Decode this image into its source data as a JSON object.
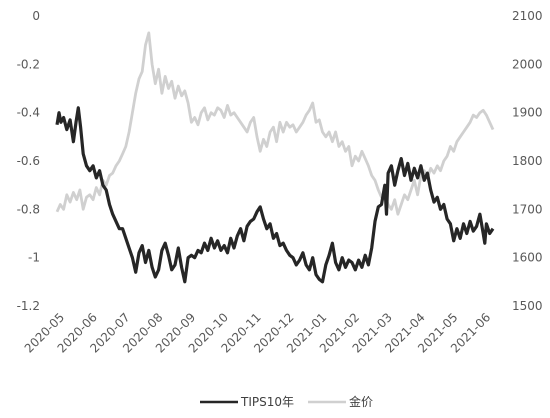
{
  "chart_data": {
    "type": "line",
    "x_categories": [
      "2020-05",
      "2020-06",
      "2020-07",
      "2020-08",
      "2020-09",
      "2020-10",
      "2020-11",
      "2020-12",
      "2021-01",
      "2021-02",
      "2021-03",
      "2021-04",
      "2021-05",
      "2021-06"
    ],
    "left_axis": {
      "min": -1.2,
      "max": 0,
      "ticks": [
        "0",
        "-0.2",
        "-0.4",
        "-0.6",
        "-0.8",
        "-1",
        "-1.2"
      ],
      "tick_values": [
        0,
        -0.2,
        -0.4,
        -0.6,
        -0.8,
        -1,
        -1.2
      ]
    },
    "right_axis": {
      "min": 1500,
      "max": 2100,
      "ticks": [
        "2100",
        "2000",
        "1900",
        "1800",
        "1700",
        "1600",
        "1500"
      ],
      "tick_values": [
        2100,
        2000,
        1900,
        1800,
        1700,
        1600,
        1500
      ]
    },
    "grid": false,
    "legend_position": "bottom",
    "series": [
      {
        "name": "TIPS10年",
        "axis": "left",
        "color": "#262626",
        "points": [
          [
            0.0,
            -0.45
          ],
          [
            0.06,
            -0.4
          ],
          [
            0.12,
            -0.44
          ],
          [
            0.2,
            -0.42
          ],
          [
            0.3,
            -0.47
          ],
          [
            0.4,
            -0.43
          ],
          [
            0.5,
            -0.52
          ],
          [
            0.58,
            -0.44
          ],
          [
            0.65,
            -0.38
          ],
          [
            0.72,
            -0.46
          ],
          [
            0.8,
            -0.57
          ],
          [
            0.9,
            -0.62
          ],
          [
            1.0,
            -0.64
          ],
          [
            1.1,
            -0.62
          ],
          [
            1.2,
            -0.67
          ],
          [
            1.3,
            -0.64
          ],
          [
            1.4,
            -0.7
          ],
          [
            1.5,
            -0.72
          ],
          [
            1.6,
            -0.78
          ],
          [
            1.7,
            -0.82
          ],
          [
            1.8,
            -0.85
          ],
          [
            1.9,
            -0.88
          ],
          [
            2.0,
            -0.88
          ],
          [
            2.1,
            -0.92
          ],
          [
            2.2,
            -0.96
          ],
          [
            2.3,
            -1.0
          ],
          [
            2.4,
            -1.06
          ],
          [
            2.5,
            -0.98
          ],
          [
            2.6,
            -0.95
          ],
          [
            2.7,
            -1.02
          ],
          [
            2.8,
            -0.97
          ],
          [
            2.9,
            -1.04
          ],
          [
            3.0,
            -1.08
          ],
          [
            3.1,
            -1.05
          ],
          [
            3.2,
            -0.97
          ],
          [
            3.3,
            -0.94
          ],
          [
            3.4,
            -0.99
          ],
          [
            3.5,
            -1.05
          ],
          [
            3.6,
            -1.03
          ],
          [
            3.7,
            -0.96
          ],
          [
            3.8,
            -1.04
          ],
          [
            3.9,
            -1.1
          ],
          [
            4.0,
            -1.0
          ],
          [
            4.1,
            -0.99
          ],
          [
            4.2,
            -1.0
          ],
          [
            4.3,
            -0.97
          ],
          [
            4.4,
            -0.98
          ],
          [
            4.5,
            -0.94
          ],
          [
            4.6,
            -0.97
          ],
          [
            4.7,
            -0.92
          ],
          [
            4.8,
            -0.96
          ],
          [
            4.9,
            -0.93
          ],
          [
            5.0,
            -0.97
          ],
          [
            5.1,
            -0.95
          ],
          [
            5.2,
            -0.98
          ],
          [
            5.3,
            -0.92
          ],
          [
            5.4,
            -0.96
          ],
          [
            5.5,
            -0.91
          ],
          [
            5.6,
            -0.88
          ],
          [
            5.7,
            -0.93
          ],
          [
            5.8,
            -0.87
          ],
          [
            5.9,
            -0.85
          ],
          [
            6.0,
            -0.84
          ],
          [
            6.1,
            -0.81
          ],
          [
            6.2,
            -0.79
          ],
          [
            6.3,
            -0.84
          ],
          [
            6.4,
            -0.88
          ],
          [
            6.5,
            -0.86
          ],
          [
            6.6,
            -0.92
          ],
          [
            6.7,
            -0.9
          ],
          [
            6.8,
            -0.95
          ],
          [
            6.9,
            -0.94
          ],
          [
            7.0,
            -0.97
          ],
          [
            7.1,
            -0.99
          ],
          [
            7.2,
            -1.0
          ],
          [
            7.3,
            -1.03
          ],
          [
            7.4,
            -1.01
          ],
          [
            7.5,
            -0.98
          ],
          [
            7.6,
            -1.03
          ],
          [
            7.7,
            -1.05
          ],
          [
            7.8,
            -1.0
          ],
          [
            7.9,
            -1.07
          ],
          [
            8.0,
            -1.09
          ],
          [
            8.1,
            -1.1
          ],
          [
            8.2,
            -1.03
          ],
          [
            8.3,
            -0.99
          ],
          [
            8.4,
            -0.94
          ],
          [
            8.5,
            -1.02
          ],
          [
            8.6,
            -1.05
          ],
          [
            8.7,
            -1.0
          ],
          [
            8.8,
            -1.04
          ],
          [
            8.9,
            -1.01
          ],
          [
            9.0,
            -1.02
          ],
          [
            9.1,
            -1.05
          ],
          [
            9.2,
            -1.01
          ],
          [
            9.3,
            -1.04
          ],
          [
            9.4,
            -0.99
          ],
          [
            9.5,
            -1.03
          ],
          [
            9.6,
            -0.96
          ],
          [
            9.7,
            -0.85
          ],
          [
            9.8,
            -0.79
          ],
          [
            9.9,
            -0.78
          ],
          [
            10.0,
            -0.7
          ],
          [
            10.05,
            -0.82
          ],
          [
            10.1,
            -0.65
          ],
          [
            10.2,
            -0.62
          ],
          [
            10.3,
            -0.7
          ],
          [
            10.4,
            -0.64
          ],
          [
            10.5,
            -0.59
          ],
          [
            10.6,
            -0.66
          ],
          [
            10.7,
            -0.61
          ],
          [
            10.8,
            -0.68
          ],
          [
            10.9,
            -0.63
          ],
          [
            11.0,
            -0.67
          ],
          [
            11.1,
            -0.62
          ],
          [
            11.2,
            -0.68
          ],
          [
            11.3,
            -0.65
          ],
          [
            11.4,
            -0.72
          ],
          [
            11.5,
            -0.77
          ],
          [
            11.6,
            -0.75
          ],
          [
            11.7,
            -0.8
          ],
          [
            11.8,
            -0.78
          ],
          [
            11.9,
            -0.84
          ],
          [
            12.0,
            -0.86
          ],
          [
            12.1,
            -0.93
          ],
          [
            12.2,
            -0.88
          ],
          [
            12.3,
            -0.92
          ],
          [
            12.4,
            -0.86
          ],
          [
            12.5,
            -0.9
          ],
          [
            12.6,
            -0.85
          ],
          [
            12.7,
            -0.89
          ],
          [
            12.8,
            -0.87
          ],
          [
            12.9,
            -0.82
          ],
          [
            13.0,
            -0.9
          ],
          [
            13.05,
            -0.94
          ],
          [
            13.1,
            -0.86
          ],
          [
            13.2,
            -0.9
          ],
          [
            13.3,
            -0.88
          ]
        ]
      },
      {
        "name": "金价",
        "axis": "right",
        "color": "#d0d0d0",
        "points": [
          [
            0.0,
            1695
          ],
          [
            0.1,
            1710
          ],
          [
            0.2,
            1700
          ],
          [
            0.3,
            1730
          ],
          [
            0.4,
            1715
          ],
          [
            0.5,
            1735
          ],
          [
            0.6,
            1720
          ],
          [
            0.7,
            1740
          ],
          [
            0.8,
            1700
          ],
          [
            0.9,
            1725
          ],
          [
            1.0,
            1730
          ],
          [
            1.1,
            1720
          ],
          [
            1.2,
            1745
          ],
          [
            1.3,
            1730
          ],
          [
            1.4,
            1760
          ],
          [
            1.5,
            1750
          ],
          [
            1.6,
            1770
          ],
          [
            1.7,
            1775
          ],
          [
            1.8,
            1790
          ],
          [
            1.9,
            1800
          ],
          [
            2.0,
            1815
          ],
          [
            2.1,
            1830
          ],
          [
            2.2,
            1860
          ],
          [
            2.3,
            1900
          ],
          [
            2.4,
            1940
          ],
          [
            2.5,
            1970
          ],
          [
            2.6,
            1985
          ],
          [
            2.7,
            2040
          ],
          [
            2.8,
            2065
          ],
          [
            2.9,
            2000
          ],
          [
            3.0,
            1960
          ],
          [
            3.1,
            1990
          ],
          [
            3.2,
            1940
          ],
          [
            3.3,
            1975
          ],
          [
            3.4,
            1950
          ],
          [
            3.5,
            1965
          ],
          [
            3.6,
            1930
          ],
          [
            3.7,
            1955
          ],
          [
            3.8,
            1935
          ],
          [
            3.9,
            1945
          ],
          [
            4.0,
            1920
          ],
          [
            4.1,
            1880
          ],
          [
            4.2,
            1890
          ],
          [
            4.3,
            1875
          ],
          [
            4.4,
            1900
          ],
          [
            4.5,
            1910
          ],
          [
            4.6,
            1885
          ],
          [
            4.7,
            1900
          ],
          [
            4.8,
            1895
          ],
          [
            4.9,
            1910
          ],
          [
            5.0,
            1905
          ],
          [
            5.1,
            1890
          ],
          [
            5.2,
            1915
          ],
          [
            5.3,
            1895
          ],
          [
            5.4,
            1900
          ],
          [
            5.5,
            1890
          ],
          [
            5.6,
            1880
          ],
          [
            5.7,
            1870
          ],
          [
            5.8,
            1860
          ],
          [
            5.9,
            1880
          ],
          [
            6.0,
            1890
          ],
          [
            6.1,
            1850
          ],
          [
            6.2,
            1820
          ],
          [
            6.3,
            1845
          ],
          [
            6.4,
            1830
          ],
          [
            6.5,
            1860
          ],
          [
            6.6,
            1870
          ],
          [
            6.7,
            1840
          ],
          [
            6.8,
            1880
          ],
          [
            6.9,
            1860
          ],
          [
            7.0,
            1880
          ],
          [
            7.1,
            1870
          ],
          [
            7.2,
            1875
          ],
          [
            7.3,
            1860
          ],
          [
            7.4,
            1870
          ],
          [
            7.5,
            1880
          ],
          [
            7.6,
            1895
          ],
          [
            7.7,
            1905
          ],
          [
            7.8,
            1920
          ],
          [
            7.9,
            1880
          ],
          [
            8.0,
            1885
          ],
          [
            8.1,
            1860
          ],
          [
            8.2,
            1850
          ],
          [
            8.3,
            1860
          ],
          [
            8.4,
            1840
          ],
          [
            8.5,
            1860
          ],
          [
            8.6,
            1830
          ],
          [
            8.7,
            1840
          ],
          [
            8.8,
            1820
          ],
          [
            8.9,
            1830
          ],
          [
            9.0,
            1790
          ],
          [
            9.1,
            1810
          ],
          [
            9.2,
            1800
          ],
          [
            9.3,
            1820
          ],
          [
            9.4,
            1805
          ],
          [
            9.5,
            1790
          ],
          [
            9.6,
            1770
          ],
          [
            9.7,
            1760
          ],
          [
            9.8,
            1740
          ],
          [
            9.9,
            1725
          ],
          [
            10.0,
            1730
          ],
          [
            10.1,
            1710
          ],
          [
            10.2,
            1700
          ],
          [
            10.3,
            1720
          ],
          [
            10.4,
            1690
          ],
          [
            10.5,
            1710
          ],
          [
            10.6,
            1730
          ],
          [
            10.7,
            1720
          ],
          [
            10.8,
            1740
          ],
          [
            10.9,
            1760
          ],
          [
            11.0,
            1730
          ],
          [
            11.1,
            1770
          ],
          [
            11.2,
            1780
          ],
          [
            11.3,
            1765
          ],
          [
            11.4,
            1785
          ],
          [
            11.5,
            1775
          ],
          [
            11.6,
            1790
          ],
          [
            11.7,
            1780
          ],
          [
            11.8,
            1800
          ],
          [
            11.9,
            1810
          ],
          [
            12.0,
            1830
          ],
          [
            12.1,
            1820
          ],
          [
            12.2,
            1840
          ],
          [
            12.3,
            1850
          ],
          [
            12.4,
            1860
          ],
          [
            12.5,
            1870
          ],
          [
            12.6,
            1880
          ],
          [
            12.7,
            1895
          ],
          [
            12.8,
            1890
          ],
          [
            12.9,
            1900
          ],
          [
            13.0,
            1905
          ],
          [
            13.1,
            1895
          ],
          [
            13.2,
            1880
          ],
          [
            13.3,
            1865
          ]
        ]
      }
    ]
  }
}
